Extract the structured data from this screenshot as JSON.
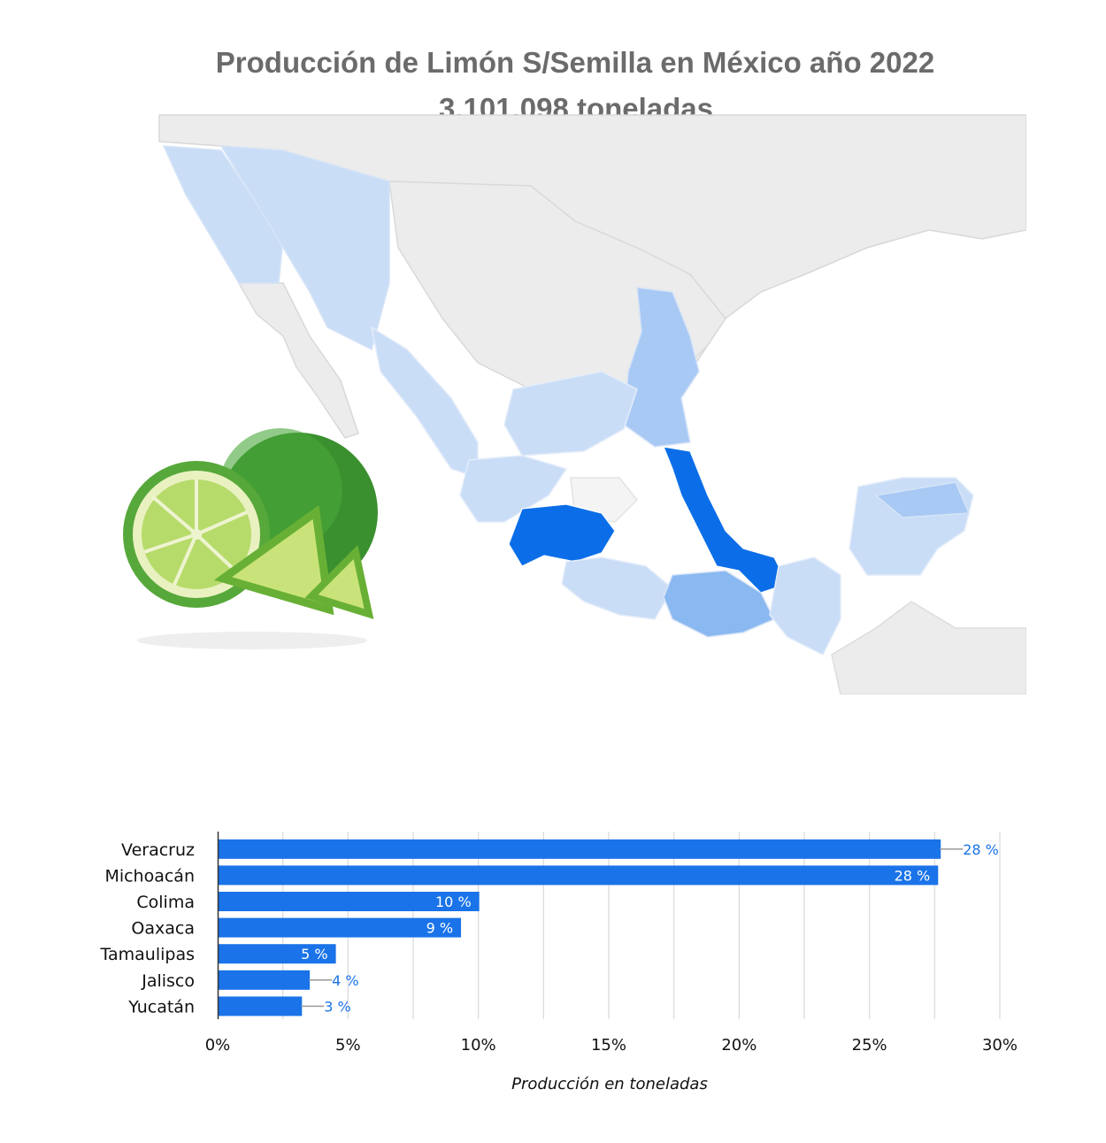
{
  "header": {
    "title": "Producción de Limón S/Semilla en México año 2022",
    "subtitle": "3,101,098 toneladas"
  },
  "colors": {
    "bar": "#1a73e8",
    "map_highlight": "#0b6ee8",
    "map_medium": "#8ab8f0",
    "map_light": "#c9ddf7",
    "map_none": "#ebebeb"
  },
  "chart_data": {
    "type": "bar",
    "orientation": "horizontal",
    "categories": [
      "Veracruz",
      "Michoacán",
      "Colima",
      "Oaxaca",
      "Tamaulipas",
      "Jalisco",
      "Yucatán"
    ],
    "values": [
      27.7,
      27.6,
      10.0,
      9.3,
      4.5,
      3.5,
      3.2
    ],
    "data_labels": [
      "28 %",
      "28 %",
      "10 %",
      "9 %",
      "5 %",
      "4 %",
      "3 %"
    ],
    "xlabel": "Producción en toneladas",
    "ylabel": "",
    "xlim": [
      0,
      30
    ],
    "xticks": [
      "0%",
      "5%",
      "10%",
      "15%",
      "20%",
      "25%",
      "30%"
    ],
    "grid": true
  },
  "map": {
    "highlight_states": [
      "Veracruz",
      "Michoacán"
    ],
    "icon": "lime-image"
  }
}
